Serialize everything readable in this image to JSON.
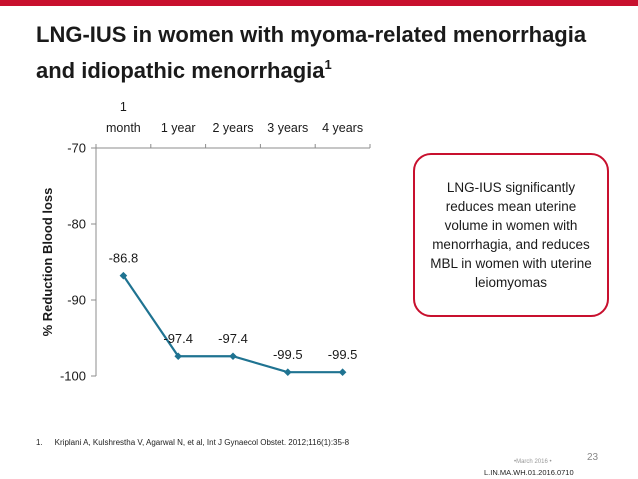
{
  "slide": {
    "title_main": "LNG-IUS in women with myoma-related menorrhagia and idiopathic menorrhagia",
    "title_sup": "1",
    "callout_text": "LNG-IUS significantly reduces mean uterine volume in women with menorrhagia, and reduces MBL in women with uterine leiomyomas",
    "footnote_number": "1.",
    "footnote_text": "Kriplani A, Kulshrestha V, Agarwal N, et al, Int J Gynaecol Obstet. 2012;116(1):35-8",
    "date_mark": "•March 2016 •",
    "page_number": "23",
    "doc_code": "L.IN.MA.WH.01.2016.0710"
  },
  "colors": {
    "accent": "#c8102e",
    "series": "#1f7391",
    "axis": "#8c8c8c"
  },
  "chart_data": {
    "type": "line",
    "categories": [
      "1 month",
      "1 year",
      "2 years",
      "3 years",
      "4 years"
    ],
    "category_lines": [
      [
        "1",
        "month"
      ],
      [
        "1 year"
      ],
      [
        "2 years"
      ],
      [
        "3 years"
      ],
      [
        "4 years"
      ]
    ],
    "series": [
      {
        "values": [
          -86.8,
          -97.4,
          -97.4,
          -99.5,
          -99.5
        ]
      }
    ],
    "data_labels": [
      "-86.8",
      "-97.4",
      "-97.4",
      "-99.5",
      "-99.5"
    ],
    "ylabel": "% Reduction Blood loss",
    "ylim": [
      -100,
      -70
    ],
    "yticks": [
      -70,
      -80,
      -90,
      -100
    ],
    "ytick_labels": [
      "-70",
      "-80",
      "-90",
      "-100"
    ],
    "x_axis_position": "top",
    "grid": false,
    "legend": "none"
  }
}
